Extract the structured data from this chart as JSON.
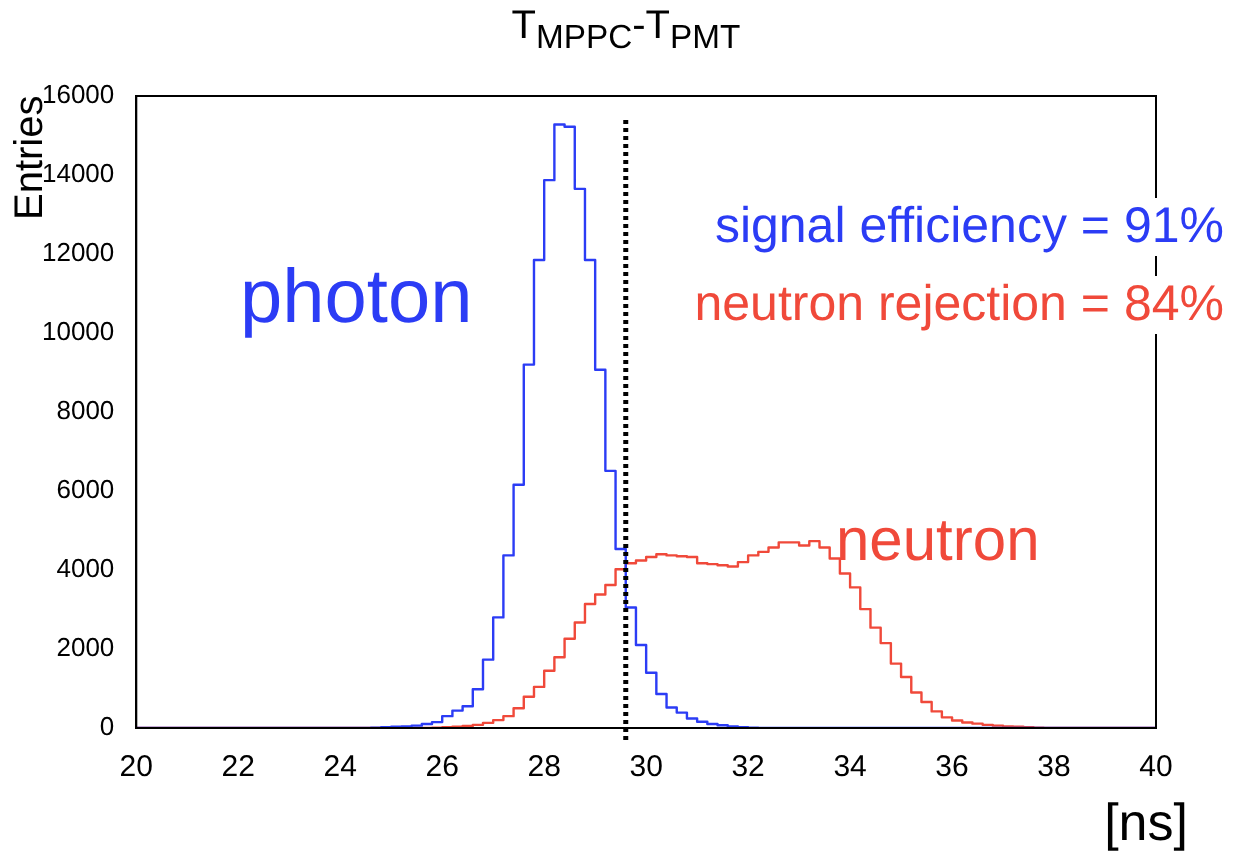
{
  "chart_data": {
    "type": "histogram",
    "title": "T$_{MPPC}$-T$_{PMT}$",
    "xlabel": "[ns]",
    "ylabel": "Entries",
    "bins": [
      20,
      20.2,
      20.4,
      20.6,
      20.8,
      21,
      21.2,
      21.4,
      21.6,
      21.8,
      22,
      22.2,
      22.4,
      22.6,
      22.8,
      23,
      23.2,
      23.4,
      23.6,
      23.8,
      24,
      24.2,
      24.4,
      24.6,
      24.8,
      25,
      25.2,
      25.4,
      25.6,
      25.8,
      26,
      26.2,
      26.4,
      26.6,
      26.8,
      27,
      27.2,
      27.4,
      27.6,
      27.8,
      28,
      28.2,
      28.4,
      28.6,
      28.8,
      29,
      29.2,
      29.4,
      29.6,
      29.8,
      30,
      30.2,
      30.4,
      30.6,
      30.8,
      31,
      31.2,
      31.4,
      31.6,
      31.8,
      32,
      32.2,
      32.4,
      32.6,
      32.8,
      33,
      33.2,
      33.4,
      33.6,
      33.8,
      34,
      34.2,
      34.4,
      34.6,
      34.8,
      35,
      35.2,
      35.4,
      35.6,
      35.8,
      36,
      36.2,
      36.4,
      36.6,
      36.8,
      37,
      37.2,
      37.4,
      37.6,
      37.8,
      38,
      38.2,
      38.4,
      38.6,
      38.8,
      39,
      39.2,
      39.4,
      39.6,
      39.8,
      40
    ],
    "series": [
      {
        "name": "photon",
        "color": "#2b3cf5",
        "values": [
          0,
          0,
          0,
          0,
          0,
          0,
          0,
          0,
          0,
          0,
          0,
          0,
          0,
          0,
          0,
          0,
          0,
          0,
          0,
          0,
          0,
          0,
          0,
          10,
          20,
          30,
          40,
          60,
          100,
          150,
          300,
          440,
          550,
          980,
          1730,
          2800,
          4370,
          6160,
          9200,
          11850,
          13870,
          15280,
          15220,
          13650,
          11850,
          9070,
          6510,
          4530,
          3050,
          2100,
          1400,
          860,
          520,
          390,
          240,
          160,
          100,
          70,
          40,
          20,
          10,
          0,
          0,
          0,
          0,
          0,
          0,
          0,
          0,
          0,
          0,
          0,
          0,
          0,
          0,
          0,
          0,
          0,
          0,
          0,
          0,
          0,
          0,
          0,
          0,
          0,
          0,
          0,
          0,
          0,
          0,
          0,
          0,
          0,
          0,
          0,
          0,
          0,
          0,
          0
        ]
      },
      {
        "name": "neutron",
        "color": "#f0493a",
        "values": [
          0,
          0,
          0,
          0,
          0,
          0,
          0,
          0,
          0,
          0,
          0,
          0,
          0,
          0,
          0,
          0,
          0,
          0,
          0,
          0,
          0,
          0,
          0,
          0,
          0,
          0,
          0,
          0,
          0,
          10,
          20,
          30,
          50,
          80,
          130,
          200,
          300,
          500,
          790,
          1040,
          1450,
          1790,
          2260,
          2670,
          3140,
          3380,
          3620,
          4020,
          4170,
          4240,
          4330,
          4400,
          4370,
          4350,
          4330,
          4170,
          4150,
          4120,
          4090,
          4200,
          4370,
          4460,
          4570,
          4700,
          4700,
          4620,
          4730,
          4570,
          4290,
          3910,
          3560,
          3010,
          2540,
          2150,
          1630,
          1290,
          900,
          660,
          420,
          270,
          190,
          140,
          110,
          80,
          60,
          40,
          30,
          20,
          10,
          0,
          0,
          0,
          0,
          0,
          0,
          0,
          0,
          0,
          0,
          0
        ]
      }
    ],
    "annotations": [
      "signal efficiency = 91%",
      "neutron rejection = 84%"
    ],
    "ref_lines": [
      {
        "axis": "x",
        "value": 29.6,
        "color": "#000000",
        "line_style": "dotted"
      }
    ],
    "xlim": [
      20,
      40
    ],
    "xticks": [
      20,
      22,
      24,
      26,
      28,
      30,
      32,
      34,
      36,
      38,
      40
    ],
    "ylim": [
      0,
      16000
    ],
    "yticks": [
      0,
      2000,
      4000,
      6000,
      8000,
      10000,
      12000,
      14000,
      16000
    ],
    "grid": false,
    "legend": false
  }
}
